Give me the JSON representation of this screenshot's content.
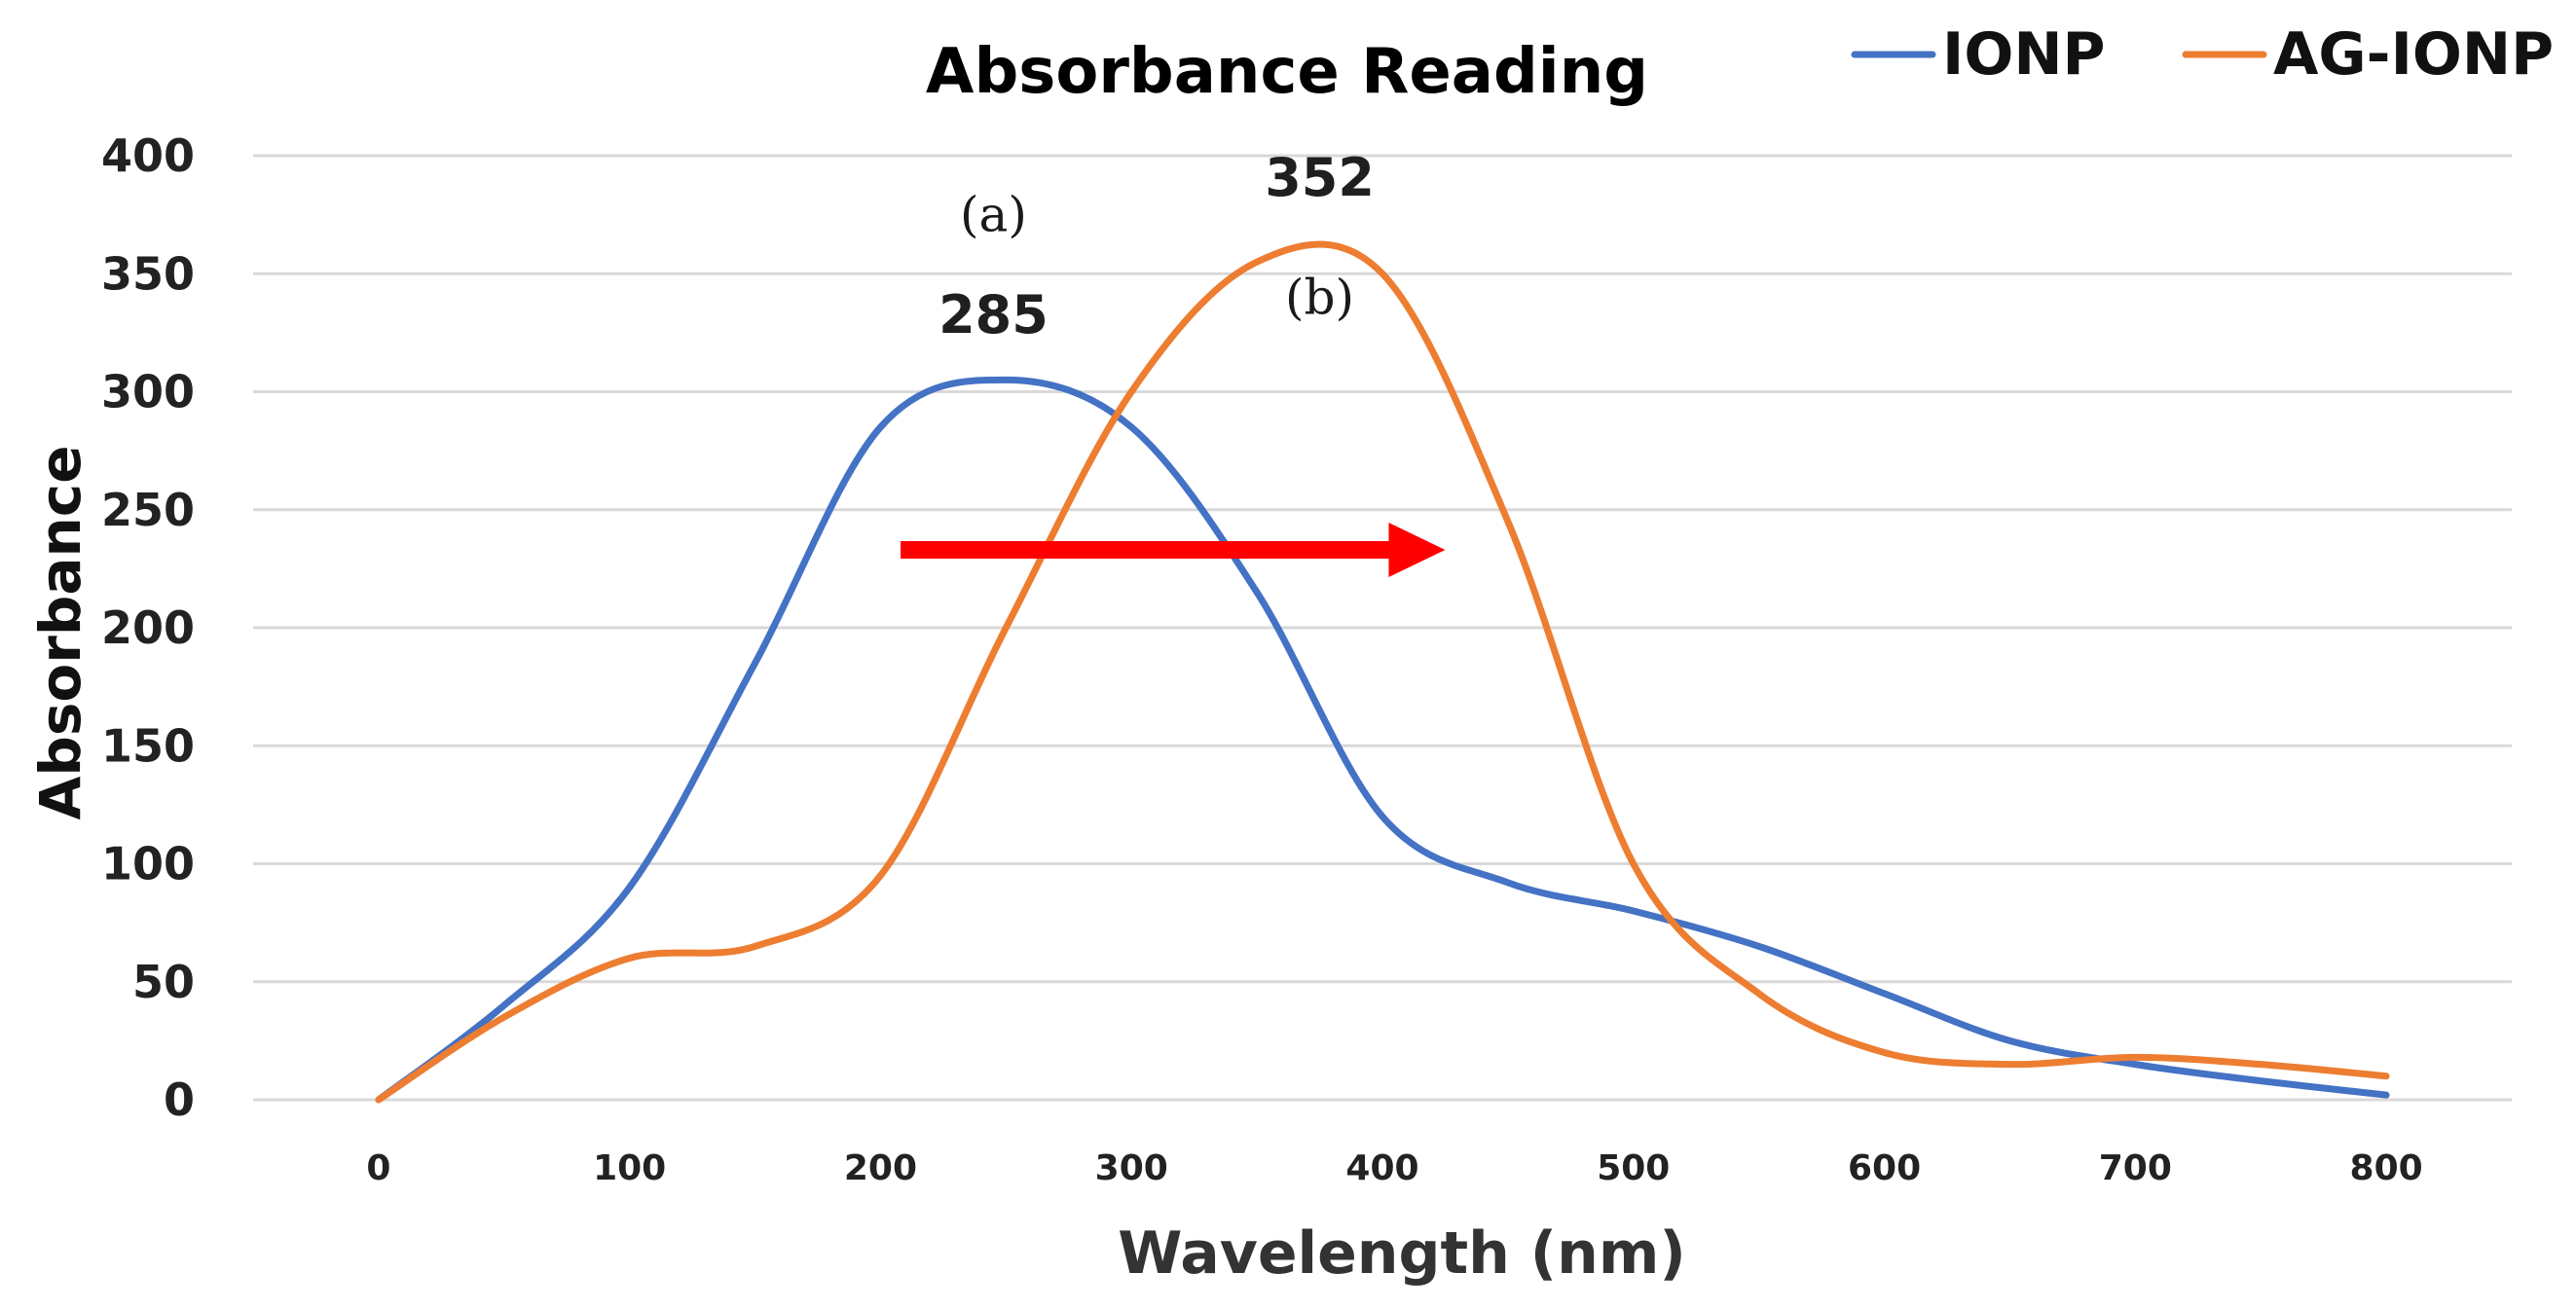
{
  "chart_data": {
    "type": "line",
    "title": "Absorbance Reading",
    "xlabel": "Wavelength (nm)",
    "ylabel": "Absorbance",
    "xlim": [
      -50,
      850
    ],
    "ylim": [
      0,
      400
    ],
    "xticks": [
      0,
      100,
      200,
      300,
      400,
      500,
      600,
      700,
      800
    ],
    "yticks": [
      0,
      50,
      100,
      150,
      200,
      250,
      300,
      350,
      400
    ],
    "grid": "horizontal",
    "legend_position": "top-right",
    "series": [
      {
        "name": "IONP",
        "color": "#4472C4",
        "x": [
          0,
          50,
          100,
          150,
          200,
          250,
          300,
          350,
          400,
          450,
          500,
          550,
          600,
          650,
          700,
          750,
          800
        ],
        "values": [
          0,
          40,
          90,
          185,
          285,
          305,
          285,
          215,
          120,
          92,
          80,
          65,
          45,
          25,
          15,
          8,
          2
        ]
      },
      {
        "name": "AG-IONP",
        "color": "#ED7D31",
        "x": [
          0,
          50,
          100,
          150,
          200,
          250,
          300,
          350,
          400,
          450,
          500,
          550,
          600,
          650,
          700,
          750,
          800
        ],
        "values": [
          0,
          35,
          60,
          65,
          95,
          200,
          300,
          355,
          350,
          245,
          100,
          45,
          20,
          15,
          18,
          15,
          10
        ]
      }
    ],
    "annotations": [
      {
        "id": "peak-a-value",
        "text": "285",
        "x": 245,
        "y": 325,
        "style": "sans-bold"
      },
      {
        "id": "peak-a-label",
        "text": "(a)",
        "x": 245,
        "y": 368,
        "style": "serif"
      },
      {
        "id": "peak-b-value",
        "text": "352",
        "x": 375,
        "y": 383,
        "style": "sans-bold"
      },
      {
        "id": "peak-b-label",
        "text": "(b)",
        "x": 375,
        "y": 333,
        "style": "serif"
      }
    ],
    "arrow": {
      "color": "#FF0000",
      "x_start": 208,
      "x_end": 425,
      "y": 233
    }
  }
}
